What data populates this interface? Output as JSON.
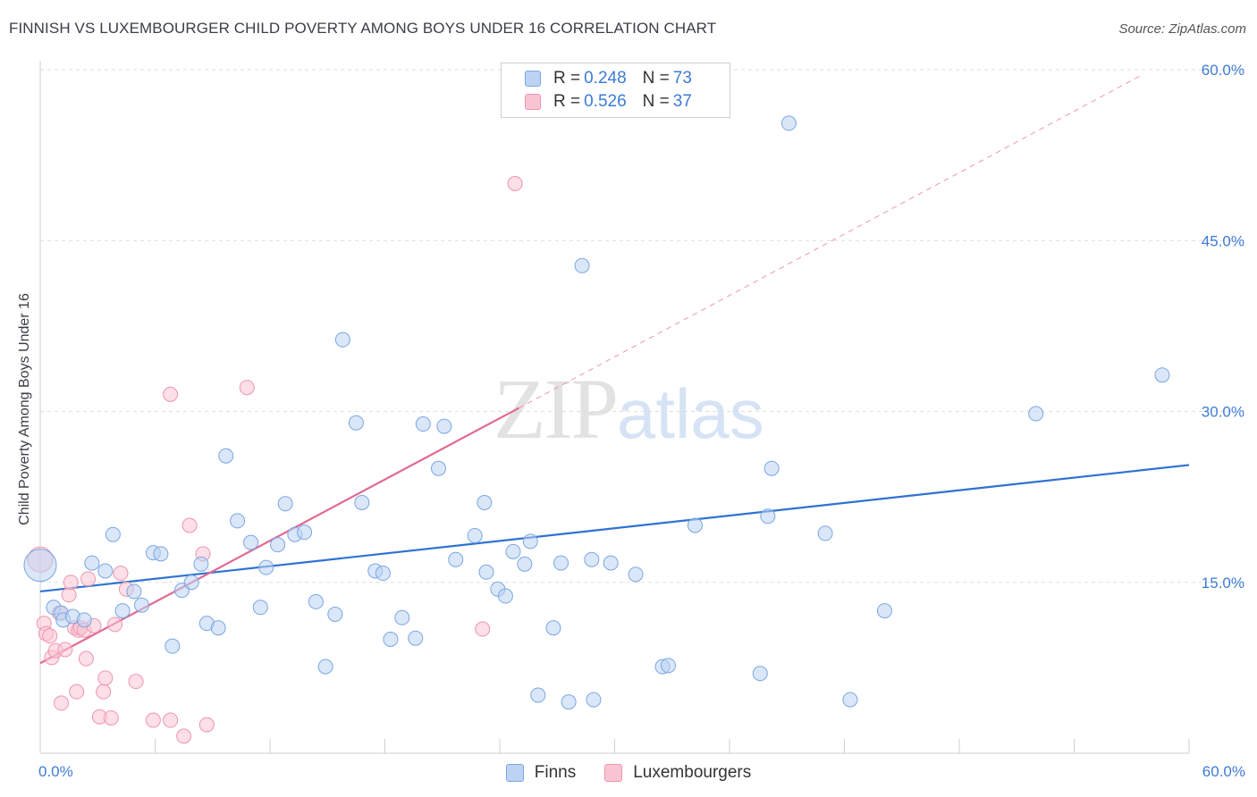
{
  "title": "FINNISH VS LUXEMBOURGER CHILD POVERTY AMONG BOYS UNDER 16 CORRELATION CHART",
  "source": "Source: ZipAtlas.com",
  "watermark": {
    "zip": "ZIP",
    "atlas": "atlas"
  },
  "legend_top": {
    "rows": [
      {
        "r_label": "R =",
        "r_value": "0.248",
        "n_label": "N =",
        "n_value": "73"
      },
      {
        "r_label": "R =",
        "r_value": "0.526",
        "n_label": "N =",
        "n_value": "37"
      }
    ]
  },
  "colors": {
    "finns_fill": "#bcd3f3",
    "finns_stroke": "#7aa6e3",
    "finns_line": "#2f72d1",
    "lux_fill": "#f9c5d3",
    "lux_stroke": "#ee95b0",
    "lux_line": "#e06a92",
    "tick_text": "#3d7bd6",
    "grid": "#dedede"
  },
  "chart_data": {
    "type": "scatter",
    "title": "FINNISH VS LUXEMBOURGER CHILD POVERTY AMONG BOYS UNDER 16 CORRELATION CHART",
    "xlabel": "",
    "ylabel": "Child Poverty Among Boys Under 16",
    "xlim": [
      0,
      60
    ],
    "ylim": [
      0,
      60
    ],
    "x_tick_labels": [
      "0.0%",
      "60.0%"
    ],
    "y_tick_labels": [
      "15.0%",
      "30.0%",
      "45.0%",
      "60.0%"
    ],
    "y_ticks": [
      15,
      30,
      45,
      60
    ],
    "grid": true,
    "legend": "bottom-center",
    "series": [
      {
        "name": "Finns",
        "r": 0.248,
        "n": 73,
        "trend": {
          "x": [
            0,
            60
          ],
          "y": [
            14.2,
            25.3
          ]
        },
        "points": [
          [
            0.0,
            16.5
          ],
          [
            0.7,
            12.8
          ],
          [
            1.1,
            12.3
          ],
          [
            1.2,
            11.7
          ],
          [
            1.7,
            12.0
          ],
          [
            2.3,
            11.7
          ],
          [
            2.7,
            16.7
          ],
          [
            3.4,
            16.0
          ],
          [
            3.8,
            19.2
          ],
          [
            4.3,
            12.5
          ],
          [
            4.9,
            14.2
          ],
          [
            5.3,
            13.0
          ],
          [
            5.9,
            17.6
          ],
          [
            6.3,
            17.5
          ],
          [
            6.9,
            9.4
          ],
          [
            7.4,
            14.3
          ],
          [
            7.9,
            15.0
          ],
          [
            8.4,
            16.6
          ],
          [
            8.7,
            11.4
          ],
          [
            9.3,
            11.0
          ],
          [
            9.7,
            26.1
          ],
          [
            10.3,
            20.4
          ],
          [
            11.0,
            18.5
          ],
          [
            11.5,
            12.8
          ],
          [
            11.8,
            16.3
          ],
          [
            12.4,
            18.3
          ],
          [
            12.8,
            21.9
          ],
          [
            13.3,
            19.2
          ],
          [
            13.8,
            19.4
          ],
          [
            14.4,
            13.3
          ],
          [
            14.9,
            7.6
          ],
          [
            15.4,
            12.2
          ],
          [
            15.8,
            36.3
          ],
          [
            16.5,
            29.0
          ],
          [
            16.8,
            22.0
          ],
          [
            17.5,
            16.0
          ],
          [
            17.9,
            15.8
          ],
          [
            18.3,
            10.0
          ],
          [
            18.9,
            11.9
          ],
          [
            19.6,
            10.1
          ],
          [
            20.0,
            28.9
          ],
          [
            20.8,
            25.0
          ],
          [
            21.1,
            28.7
          ],
          [
            21.7,
            17.0
          ],
          [
            22.7,
            19.1
          ],
          [
            23.2,
            22.0
          ],
          [
            23.3,
            15.9
          ],
          [
            23.9,
            14.4
          ],
          [
            24.3,
            13.8
          ],
          [
            24.7,
            17.7
          ],
          [
            25.3,
            16.6
          ],
          [
            25.6,
            18.6
          ],
          [
            26.0,
            5.1
          ],
          [
            26.8,
            11.0
          ],
          [
            27.2,
            16.7
          ],
          [
            27.6,
            4.5
          ],
          [
            28.3,
            42.8
          ],
          [
            28.8,
            17.0
          ],
          [
            28.9,
            4.7
          ],
          [
            29.8,
            16.7
          ],
          [
            31.1,
            15.7
          ],
          [
            32.5,
            7.6
          ],
          [
            32.8,
            7.7
          ],
          [
            34.2,
            20.0
          ],
          [
            37.6,
            7.0
          ],
          [
            38.0,
            20.8
          ],
          [
            38.2,
            25.0
          ],
          [
            39.1,
            55.3
          ],
          [
            41.0,
            19.3
          ],
          [
            42.3,
            4.7
          ],
          [
            44.1,
            12.5
          ],
          [
            52.0,
            29.8
          ],
          [
            58.6,
            33.2
          ]
        ]
      },
      {
        "name": "Luxembourgers",
        "r": 0.526,
        "n": 37,
        "trend": {
          "x": [
            0,
            25
          ],
          "y": [
            7.9,
            30.3
          ]
        },
        "trend_extension": {
          "x": [
            25,
            57.5
          ],
          "y": [
            30.3,
            59.5
          ]
        },
        "points": [
          [
            0.0,
            17.0
          ],
          [
            0.2,
            11.4
          ],
          [
            0.3,
            10.5
          ],
          [
            0.5,
            10.3
          ],
          [
            0.6,
            8.4
          ],
          [
            0.8,
            9.0
          ],
          [
            1.0,
            12.3
          ],
          [
            1.1,
            4.4
          ],
          [
            1.3,
            9.1
          ],
          [
            1.5,
            13.9
          ],
          [
            1.6,
            15.0
          ],
          [
            1.8,
            11.0
          ],
          [
            1.9,
            5.4
          ],
          [
            2.0,
            10.8
          ],
          [
            2.1,
            11.0
          ],
          [
            2.3,
            10.8
          ],
          [
            2.4,
            8.3
          ],
          [
            2.5,
            15.3
          ],
          [
            2.8,
            11.2
          ],
          [
            3.1,
            3.2
          ],
          [
            3.3,
            5.4
          ],
          [
            3.4,
            6.6
          ],
          [
            3.7,
            3.1
          ],
          [
            3.9,
            11.3
          ],
          [
            4.2,
            15.8
          ],
          [
            4.5,
            14.4
          ],
          [
            5.0,
            6.3
          ],
          [
            5.9,
            2.9
          ],
          [
            6.8,
            2.9
          ],
          [
            6.8,
            31.5
          ],
          [
            7.5,
            1.5
          ],
          [
            7.8,
            20.0
          ],
          [
            8.5,
            17.5
          ],
          [
            8.7,
            2.5
          ],
          [
            10.8,
            32.1
          ],
          [
            23.1,
            10.9
          ],
          [
            24.8,
            50.0
          ]
        ]
      }
    ]
  },
  "bottom_legend": {
    "finns": "Finns",
    "luxembourgers": "Luxembourgers"
  }
}
